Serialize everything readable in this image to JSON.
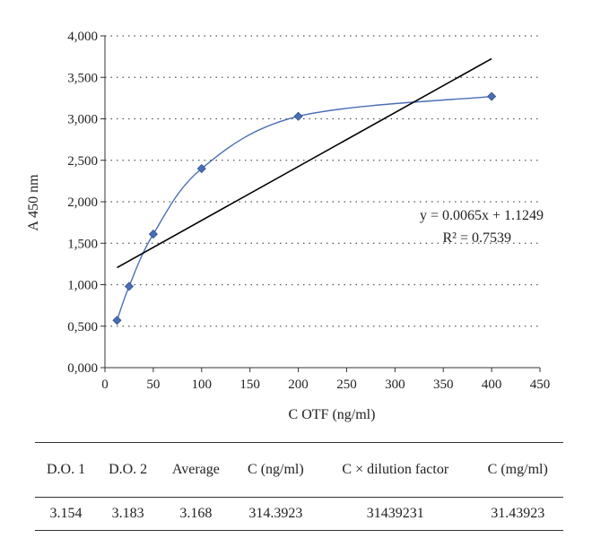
{
  "chart_data": {
    "type": "scatter",
    "title": "",
    "xlabel": "C OTF (ng/ml)",
    "ylabel": "A 450 nm",
    "xlim": [
      0,
      450
    ],
    "ylim": [
      0,
      4
    ],
    "x_ticks": [
      "0",
      "50",
      "100",
      "150",
      "200",
      "250",
      "300",
      "350",
      "400",
      "450"
    ],
    "y_ticks": [
      "0,000",
      "0,500",
      "1,000",
      "1,500",
      "2,000",
      "2,500",
      "3,000",
      "3,500",
      "4,000"
    ],
    "grid": "horizontal dotted",
    "series": [
      {
        "type": "scatter-smooth",
        "color": "#4a6fb5",
        "x": [
          12.5,
          25,
          50,
          100,
          200,
          400
        ],
        "y": [
          0.57,
          0.98,
          1.61,
          2.4,
          3.03,
          3.27
        ]
      },
      {
        "type": "trendline-linear",
        "color": "#000000",
        "slope": 0.0065,
        "intercept": 1.1249,
        "x_range": [
          12.5,
          400
        ]
      }
    ],
    "annotations": {
      "equation": "y = 0.0065x + 1.1249",
      "r_squared": "R² = 0.7539"
    }
  },
  "table": {
    "headers": [
      "D.O. 1",
      "D.O. 2",
      "Average",
      "C (ng/ml)",
      "C × dilution factor",
      "C (mg/ml)"
    ],
    "rows": [
      [
        "3.154",
        "3.183",
        "3.168",
        "314.3923",
        "31439231",
        "31.43923"
      ]
    ]
  }
}
